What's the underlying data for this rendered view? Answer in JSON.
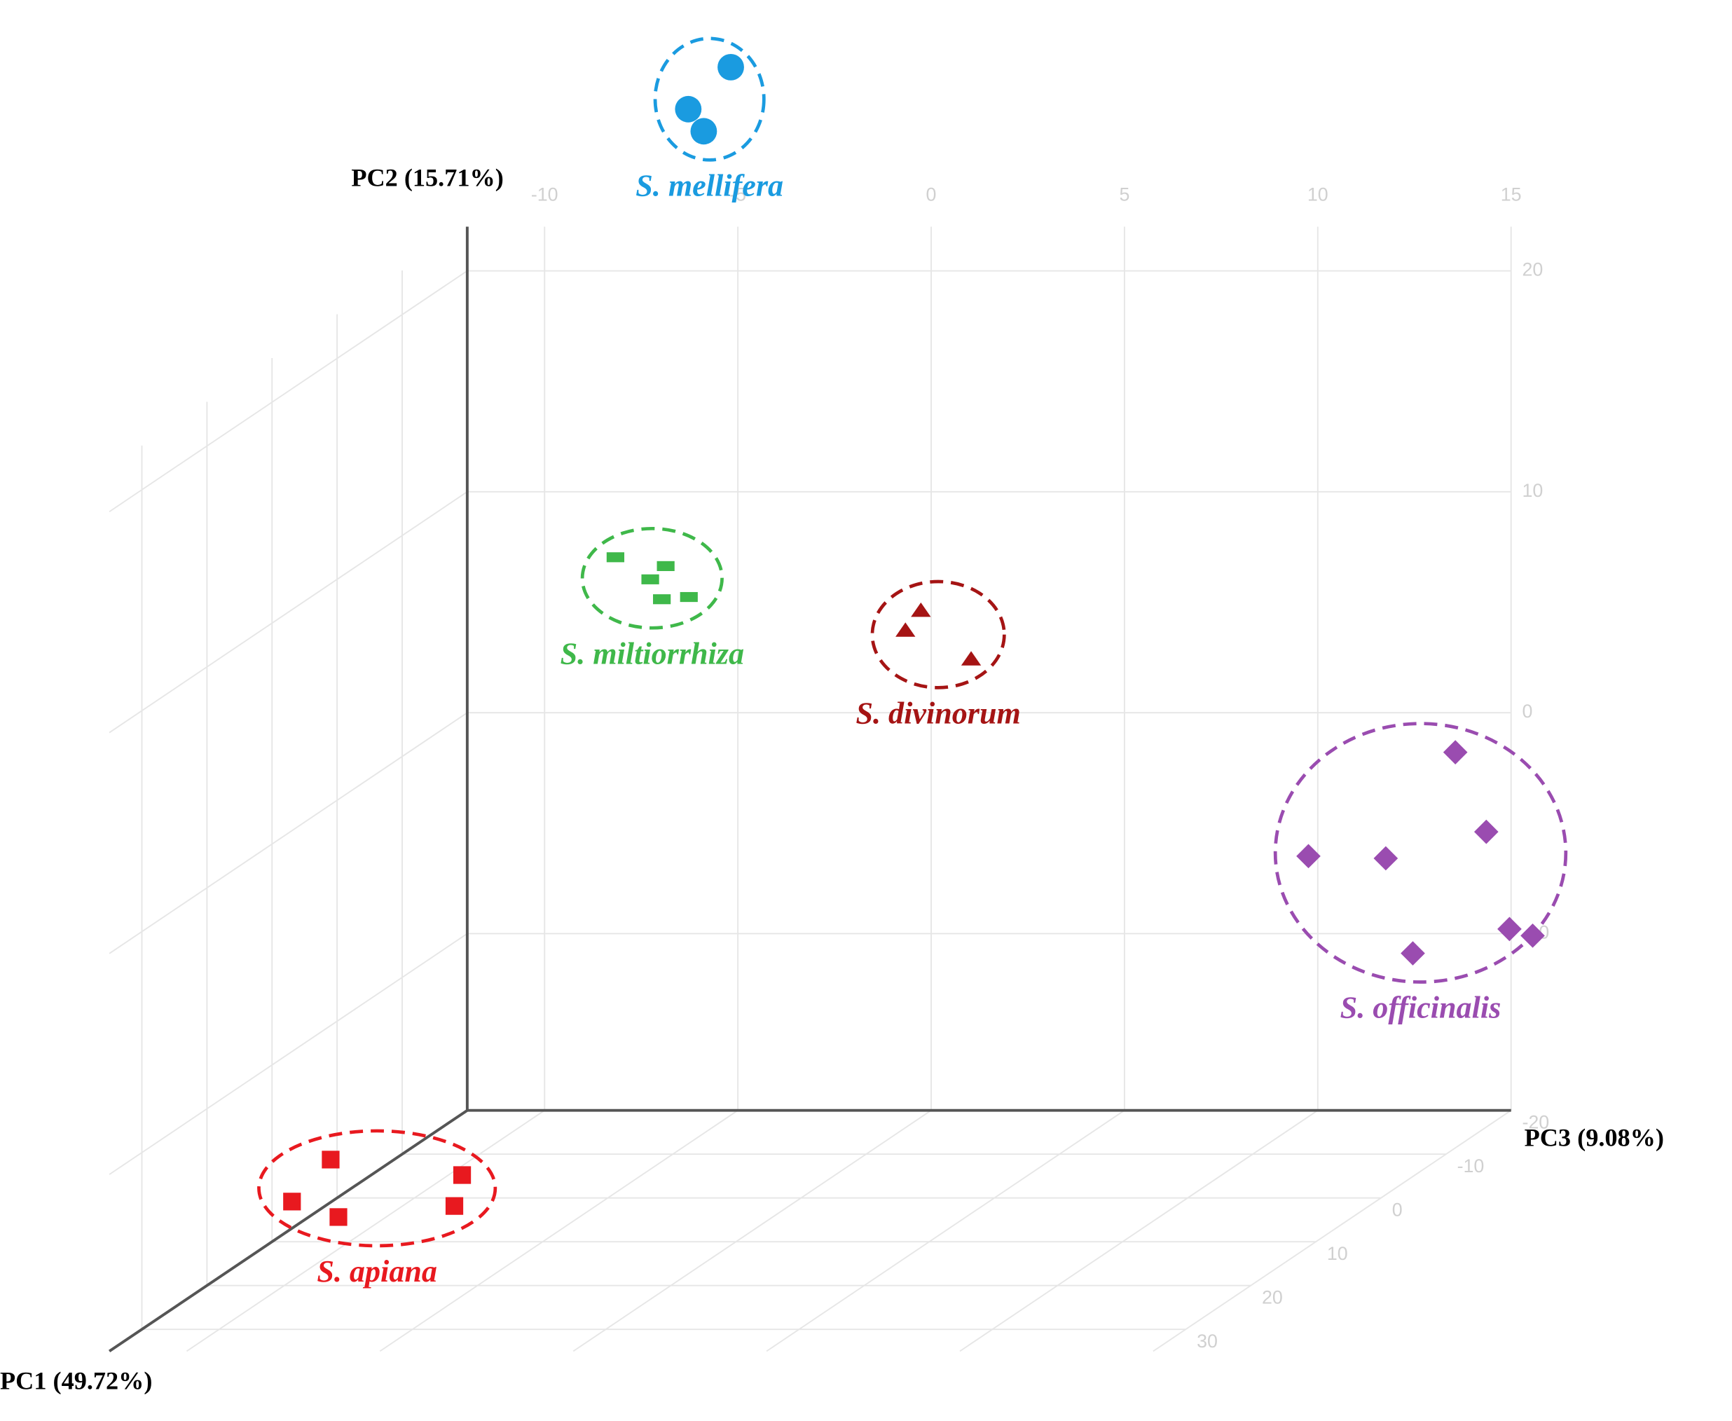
{
  "chart_data": {
    "type": "scatter3d",
    "xlabel": "PC3 (9.08%)",
    "ylabel": "PC2 (15.71%)",
    "zlabel": "PC1 (49.72%)",
    "xlim": [
      -12,
      15
    ],
    "xticks": [
      -10,
      -5,
      0,
      5,
      10,
      15
    ],
    "ylim": [
      -18,
      22
    ],
    "yticks": [
      -10,
      0,
      10,
      20
    ],
    "zlim": [
      -20,
      35
    ],
    "zticks": [
      -20,
      -10,
      0,
      10,
      20,
      30
    ],
    "grid": true,
    "series": [
      {
        "name": "S. mellifera",
        "color": "#1a9be0",
        "marker": "circle",
        "x": [
          -3.5,
          -4.6,
          -4.2
        ],
        "y": [
          31.2,
          29.3,
          28.3
        ],
        "z": [
          -10,
          -10,
          -10
        ]
      },
      {
        "name": "S. miltiorrhiza",
        "color": "#3fb84a",
        "marker": "rect",
        "x": [
          -4.8,
          -3.9,
          -3.5,
          -3.6,
          -2.9
        ],
        "y": [
          11.0,
          10.0,
          10.6,
          9.1,
          9.2
        ],
        "z": [
          0,
          0,
          0,
          0,
          0
        ]
      },
      {
        "name": "S. divinorum",
        "color": "#a51414",
        "marker": "triangle",
        "x": [
          3.1,
          2.7,
          4.4
        ],
        "y": [
          8.6,
          7.7,
          6.4
        ],
        "z": [
          0,
          0,
          0
        ]
      },
      {
        "name": "S. officinalis",
        "color": "#9a4cb0",
        "marker": "diamond",
        "x": [
          14.4,
          15.2,
          10.6,
          12.6,
          15.8,
          16.4,
          13.3
        ],
        "y": [
          -0.8,
          -4.4,
          -5.5,
          -5.6,
          -8.8,
          -9.1,
          -9.9
        ],
        "z": [
          -15,
          -15,
          -15,
          -15,
          -15,
          -15,
          -15
        ]
      },
      {
        "name": "S. apiana",
        "color": "#e8191f",
        "marker": "square",
        "x": [
          -8.8,
          -5.4,
          -9.8,
          -8.6,
          -5.6
        ],
        "y": [
          -12.3,
          -13.0,
          -14.2,
          -14.9,
          -14.4
        ],
        "z": [
          20,
          20,
          20,
          20,
          20
        ]
      }
    ]
  }
}
